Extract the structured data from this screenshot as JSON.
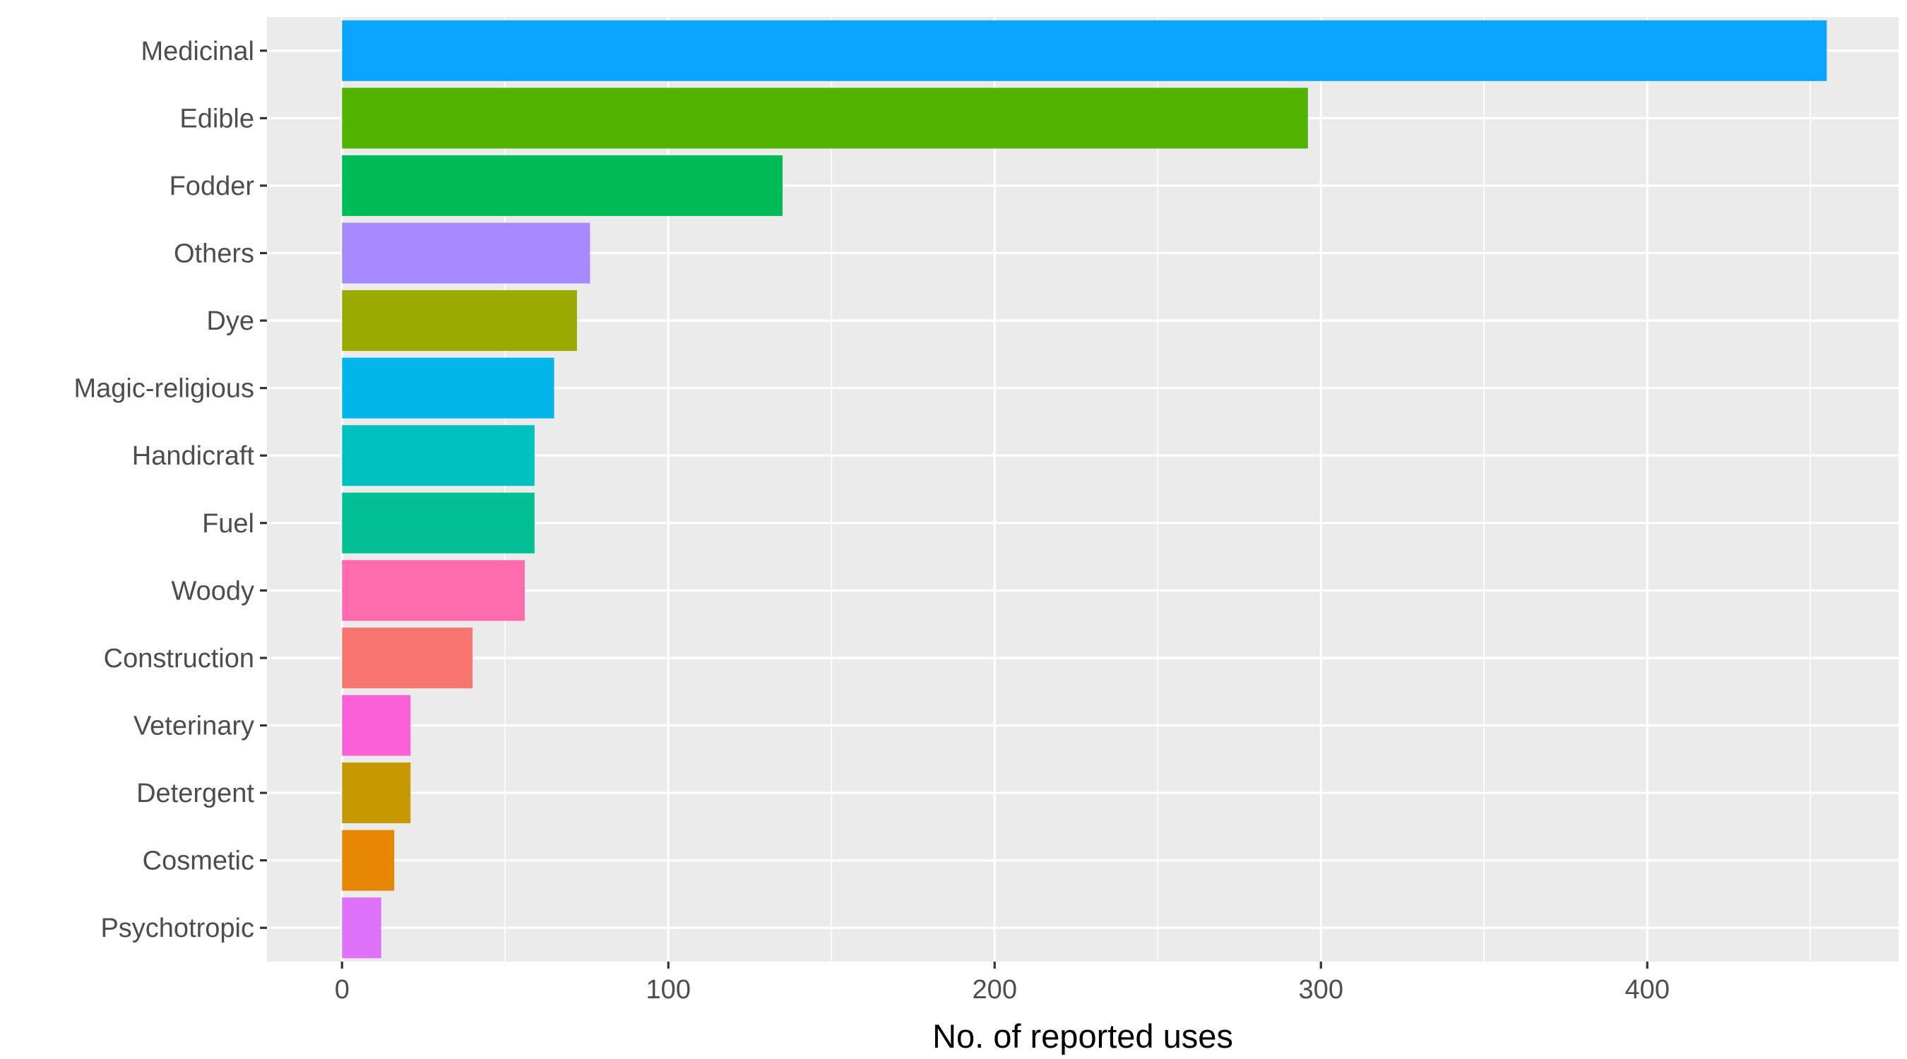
{
  "chart_data": {
    "type": "bar",
    "orientation": "horizontal",
    "title": "",
    "xlabel": "No. of reported uses",
    "ylabel": "",
    "xlim": [
      -23,
      477
    ],
    "x_ticks": [
      0,
      100,
      200,
      300,
      400
    ],
    "x_tick_labels": [
      "0",
      "100",
      "200",
      "300",
      "400"
    ],
    "grid": true,
    "legend": "none",
    "panel_background": "#EBEBEB",
    "grid_color": "#FFFFFF",
    "categories": [
      "Medicinal",
      "Edible",
      "Fodder",
      "Others",
      "Dye",
      "Magic-religious",
      "Handicraft",
      "Fuel",
      "Woody",
      "Construction",
      "Veterinary",
      "Detergent",
      "Cosmetic",
      "Psychotropic"
    ],
    "values": [
      455,
      296,
      135,
      76,
      72,
      65,
      59,
      59,
      56,
      40,
      21,
      21,
      16,
      12
    ],
    "colors": [
      "#0BA4FF",
      "#53B400",
      "#00BC56",
      "#A58AFF",
      "#9AAA00",
      "#00B6EB",
      "#00C0C0",
      "#00C094",
      "#FF6BAC",
      "#F8766D",
      "#FB61D7",
      "#C49A00",
      "#E58700",
      "#DF70F8"
    ]
  }
}
